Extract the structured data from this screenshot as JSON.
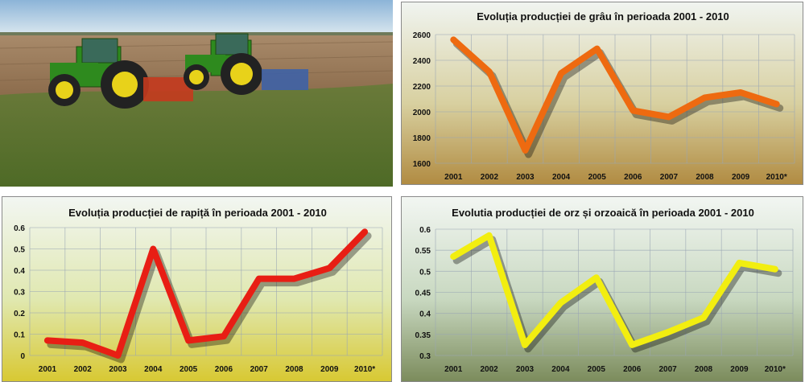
{
  "chart_data": [
    {
      "type": "line",
      "title": "Evoluția producției de grâu în perioada 2001 - 2010",
      "categories": [
        "2001",
        "2002",
        "2003",
        "2004",
        "2005",
        "2006",
        "2007",
        "2008",
        "2009",
        "2010*"
      ],
      "values": [
        2560,
        2310,
        1700,
        2300,
        2490,
        2010,
        1960,
        2110,
        2150,
        2060
      ],
      "yticks": [
        "2600",
        "2400",
        "2200",
        "2000",
        "1800",
        "1600"
      ],
      "ylim": [
        1600,
        2600
      ],
      "line_color": "#ee6a10",
      "background": "wheat field photo",
      "grid": true
    },
    {
      "type": "line",
      "title": "Evoluția producției de rapiță în perioada  2001 - 2010",
      "categories": [
        "2001",
        "2002",
        "2003",
        "2004",
        "2005",
        "2006",
        "2007",
        "2008",
        "2009",
        "2010*"
      ],
      "values": [
        0.07,
        0.06,
        0.0,
        0.5,
        0.07,
        0.09,
        0.36,
        0.36,
        0.41,
        0.58
      ],
      "yticks": [
        "0.6",
        "0.5",
        "0.4",
        "0.3",
        "0.2",
        "0.1",
        "0"
      ],
      "ylim": [
        0,
        0.6
      ],
      "line_color": "#e81e14",
      "background": "rapeseed field photo",
      "grid": true
    },
    {
      "type": "line",
      "title": "Evolutia producției de orz  și orzoaică în perioada  2001 - 2010",
      "categories": [
        "2001",
        "2002",
        "2003",
        "2004",
        "2005",
        "2006",
        "2007",
        "2008",
        "2009",
        "2010*"
      ],
      "values": [
        0.535,
        0.585,
        0.325,
        0.425,
        0.485,
        0.325,
        0.355,
        0.39,
        0.52,
        0.505
      ],
      "yticks": [
        "0.6",
        "0.55",
        "0.5",
        "0.45",
        "0.4",
        "0.35",
        "0.3"
      ],
      "ylim": [
        0.3,
        0.6
      ],
      "line_color": "#f2ee10",
      "background": "barley field photo",
      "grid": true
    }
  ],
  "photo": {
    "subject": "two green tractors in a field",
    "tractor_color": "#2e8a1e"
  }
}
